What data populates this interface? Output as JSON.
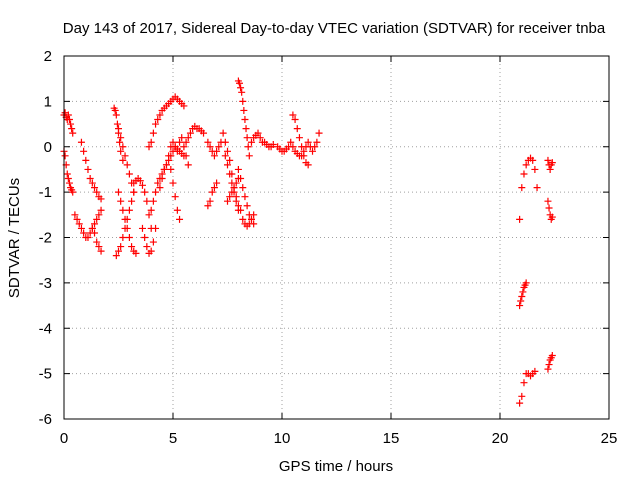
{
  "chart_data": {
    "type": "scatter",
    "title": "Day 143 of 2017, Sidereal Day-to-day VTEC variation (SDTVAR) for receiver tnba",
    "xlabel": "GPS time / hours",
    "ylabel": "SDTVAR / TECUs",
    "xlim": [
      0,
      25
    ],
    "ylim": [
      -6,
      2
    ],
    "xticks": [
      0,
      5,
      10,
      15,
      20,
      25
    ],
    "yticks": [
      -6,
      -5,
      -4,
      -3,
      -2,
      -1,
      0,
      1,
      2
    ],
    "grid": true,
    "marker": "+",
    "series": [
      {
        "name": "SDTVAR",
        "color": "#ff0000",
        "segments": [
          {
            "x": [
              0.0,
              0.05,
              0.1,
              0.15,
              0.2,
              0.25,
              0.3,
              0.35,
              0.4
            ],
            "y": [
              0.7,
              0.75,
              0.65,
              0.6,
              0.7,
              0.6,
              0.5,
              0.4,
              0.3
            ]
          },
          {
            "x": [
              0.0,
              0.05,
              0.1,
              0.15,
              0.2,
              0.25,
              0.3,
              0.35,
              0.4
            ],
            "y": [
              -0.1,
              -0.2,
              -0.4,
              -0.6,
              -0.7,
              -0.8,
              -0.9,
              -0.95,
              -1.0
            ]
          },
          {
            "x": [
              0.5,
              0.6,
              0.7,
              0.8,
              0.9,
              1.0,
              1.1,
              1.2,
              1.3,
              1.4,
              1.5,
              1.6,
              1.7
            ],
            "y": [
              -1.5,
              -1.6,
              -1.7,
              -1.8,
              -1.9,
              -2.0,
              -2.0,
              -1.9,
              -1.8,
              -1.7,
              -1.6,
              -1.5,
              -1.4
            ]
          },
          {
            "x": [
              0.8,
              0.9,
              1.0,
              1.1,
              1.2,
              1.3,
              1.4,
              1.5,
              1.6,
              1.7
            ],
            "y": [
              0.1,
              -0.1,
              -0.3,
              -0.5,
              -0.7,
              -0.8,
              -0.9,
              -1.0,
              -1.1,
              -1.15
            ]
          },
          {
            "x": [
              1.3,
              1.4,
              1.5,
              1.6,
              1.7
            ],
            "y": [
              -1.8,
              -1.9,
              -2.1,
              -2.2,
              -2.3
            ]
          },
          {
            "x": [
              2.3,
              2.35,
              2.4,
              2.45,
              2.5,
              2.55,
              2.6,
              2.7
            ],
            "y": [
              0.85,
              0.8,
              0.7,
              0.5,
              0.3,
              0.1,
              -0.1,
              -0.3
            ]
          },
          {
            "x": [
              2.4,
              2.5,
              2.6,
              2.7,
              2.8,
              2.9,
              3.0,
              3.1,
              3.2
            ],
            "y": [
              -2.4,
              -2.3,
              -2.2,
              -2.0,
              -1.8,
              -1.6,
              -1.4,
              -1.2,
              -1.0
            ]
          },
          {
            "x": [
              2.5,
              2.6,
              2.7,
              2.8,
              2.9,
              3.0,
              3.1,
              3.2
            ],
            "y": [
              0.4,
              0.2,
              0.0,
              -0.2,
              -0.4,
              -0.6,
              -0.8,
              -1.0
            ]
          },
          {
            "x": [
              2.5,
              2.6,
              2.7,
              2.8,
              2.9,
              3.0,
              3.1,
              3.2,
              3.3
            ],
            "y": [
              -1.0,
              -1.2,
              -1.4,
              -1.6,
              -1.8,
              -2.0,
              -2.2,
              -2.3,
              -2.35
            ]
          },
          {
            "x": [
              3.2,
              3.3,
              3.4,
              3.5,
              3.6,
              3.7,
              3.8,
              3.9,
              4.0
            ],
            "y": [
              -0.8,
              -0.75,
              -0.7,
              -0.75,
              -0.85,
              -1.0,
              -1.2,
              -1.5,
              -1.8
            ]
          },
          {
            "x": [
              3.6,
              3.7,
              3.8,
              3.9,
              4.0,
              4.1,
              4.2
            ],
            "y": [
              -1.8,
              -2.0,
              -2.2,
              -2.35,
              -2.3,
              -2.1,
              -1.8
            ]
          },
          {
            "x": [
              3.9,
              4.0,
              4.1,
              4.2,
              4.3,
              4.4,
              4.5,
              4.6,
              4.7,
              4.8,
              4.9,
              5.0,
              5.1,
              5.2,
              5.3,
              5.4,
              5.5
            ],
            "y": [
              0.0,
              0.1,
              0.3,
              0.5,
              0.6,
              0.7,
              0.8,
              0.85,
              0.9,
              0.95,
              1.0,
              1.05,
              1.1,
              1.05,
              1.0,
              0.95,
              0.9
            ]
          },
          {
            "x": [
              4.0,
              4.1,
              4.2,
              4.3,
              4.4,
              4.5,
              4.6,
              4.7,
              4.8,
              4.9,
              5.0,
              5.1,
              5.2,
              5.3,
              5.4,
              5.5
            ],
            "y": [
              -1.4,
              -1.2,
              -1.0,
              -0.8,
              -0.7,
              -0.6,
              -0.5,
              -0.4,
              -0.3,
              -0.2,
              -0.1,
              0.0,
              -0.05,
              -0.1,
              -0.15,
              -0.2
            ]
          },
          {
            "x": [
              4.4,
              4.5,
              4.6,
              4.7,
              4.8,
              4.9,
              5.0,
              5.1,
              5.2,
              5.3,
              5.4,
              5.5,
              5.6,
              5.7
            ],
            "y": [
              -0.9,
              -0.7,
              -0.5,
              -0.4,
              -0.2,
              0.0,
              0.1,
              0.0,
              -0.1,
              0.1,
              0.2,
              0.0,
              -0.2,
              -0.4
            ]
          },
          {
            "x": [
              4.9,
              5.0,
              5.1,
              5.2,
              5.3
            ],
            "y": [
              -0.5,
              -0.8,
              -1.1,
              -1.4,
              -1.6
            ]
          },
          {
            "x": [
              5.6,
              5.7,
              5.8,
              5.9,
              6.0,
              6.1,
              6.2,
              6.3,
              6.4
            ],
            "y": [
              0.1,
              0.2,
              0.3,
              0.4,
              0.45,
              0.4,
              0.4,
              0.35,
              0.3
            ]
          },
          {
            "x": [
              6.6,
              6.7,
              6.8,
              6.9,
              7.0,
              7.1,
              7.2
            ],
            "y": [
              0.1,
              0.0,
              -0.1,
              -0.2,
              -0.1,
              0.0,
              0.1
            ]
          },
          {
            "x": [
              6.6,
              6.7,
              6.8,
              6.9,
              7.0
            ],
            "y": [
              -1.3,
              -1.2,
              -1.0,
              -0.9,
              -0.8
            ]
          },
          {
            "x": [
              7.3,
              7.4,
              7.5,
              7.6,
              7.7,
              7.8,
              7.9,
              8.0
            ],
            "y": [
              0.3,
              0.1,
              -0.1,
              -0.3,
              -0.6,
              -0.9,
              -1.1,
              -1.3
            ]
          },
          {
            "x": [
              7.4,
              7.5,
              7.6,
              7.7,
              7.8,
              7.9,
              8.0
            ],
            "y": [
              -0.2,
              -0.4,
              -0.6,
              -0.8,
              -1.0,
              -1.2,
              -1.4
            ]
          },
          {
            "x": [
              7.5,
              7.6,
              7.7,
              7.8,
              7.9,
              8.0
            ],
            "y": [
              -1.2,
              -1.1,
              -1.0,
              -0.9,
              -0.8,
              -0.7
            ]
          },
          {
            "x": [
              8.0,
              8.05,
              8.1,
              8.15,
              8.2,
              8.25,
              8.3,
              8.35,
              8.4,
              8.45,
              8.5
            ],
            "y": [
              1.45,
              1.4,
              1.3,
              1.2,
              1.0,
              0.8,
              0.6,
              0.4,
              0.2,
              0.0,
              -0.2
            ]
          },
          {
            "x": [
              8.0,
              8.1,
              8.2,
              8.3,
              8.4,
              8.5,
              8.6,
              8.7
            ],
            "y": [
              -0.5,
              -0.7,
              -0.9,
              -1.1,
              -1.3,
              -1.5,
              -1.6,
              -1.7
            ]
          },
          {
            "x": [
              8.1,
              8.2,
              8.3,
              8.4,
              8.5,
              8.6,
              8.7
            ],
            "y": [
              -1.4,
              -1.6,
              -1.7,
              -1.75,
              -1.7,
              -1.6,
              -1.5
            ]
          },
          {
            "x": [
              8.6,
              8.7,
              8.8,
              8.9,
              9.0,
              9.1,
              9.2,
              9.3,
              9.4,
              9.5,
              9.6
            ],
            "y": [
              0.1,
              0.2,
              0.25,
              0.3,
              0.2,
              0.1,
              0.1,
              0.05,
              0.0,
              0.0,
              0.05
            ]
          },
          {
            "x": [
              9.8,
              9.9,
              10.0,
              10.1,
              10.2,
              10.3,
              10.4,
              10.5,
              10.6,
              10.7,
              10.8
            ],
            "y": [
              0.0,
              -0.05,
              -0.1,
              -0.1,
              -0.05,
              0.0,
              0.1,
              0.0,
              -0.1,
              -0.15,
              -0.2
            ]
          },
          {
            "x": [
              10.5,
              10.6,
              10.7,
              10.8,
              10.9,
              11.0,
              11.1,
              11.2
            ],
            "y": [
              0.7,
              0.6,
              0.4,
              0.2,
              0.0,
              -0.2,
              -0.35,
              -0.4
            ]
          },
          {
            "x": [
              10.9,
              11.0,
              11.1,
              11.2,
              11.3,
              11.4,
              11.5,
              11.6,
              11.7
            ],
            "y": [
              -0.2,
              -0.1,
              0.0,
              0.1,
              0.0,
              -0.1,
              0.0,
              0.1,
              0.3
            ]
          },
          {
            "x": [
              20.9,
              21.0,
              21.1,
              21.2,
              21.3,
              21.4,
              21.5,
              21.6,
              21.7
            ],
            "y": [
              -1.6,
              -0.9,
              -0.6,
              -0.4,
              -0.3,
              -0.25,
              -0.3,
              -0.5,
              -0.9
            ]
          },
          {
            "x": [
              20.9,
              20.95,
              21.0,
              21.05,
              21.1,
              21.15,
              21.2
            ],
            "y": [
              -3.5,
              -3.4,
              -3.3,
              -3.2,
              -3.1,
              -3.05,
              -3.0
            ]
          },
          {
            "x": [
              20.9,
              21.0,
              21.1,
              21.2,
              21.3,
              21.4,
              21.5,
              21.6
            ],
            "y": [
              -5.65,
              -5.5,
              -5.2,
              -5.0,
              -5.0,
              -5.05,
              -5.0,
              -4.95
            ]
          },
          {
            "x": [
              22.2,
              22.25,
              22.3,
              22.35,
              22.4
            ],
            "y": [
              -0.3,
              -0.4,
              -0.5,
              -0.4,
              -0.35
            ]
          },
          {
            "x": [
              22.2,
              22.25,
              22.3,
              22.35,
              22.4
            ],
            "y": [
              -1.2,
              -1.35,
              -1.5,
              -1.6,
              -1.55
            ]
          },
          {
            "x": [
              22.2,
              22.25,
              22.3,
              22.35,
              22.4
            ],
            "y": [
              -4.9,
              -4.8,
              -4.7,
              -4.65,
              -4.6
            ]
          }
        ]
      }
    ]
  }
}
